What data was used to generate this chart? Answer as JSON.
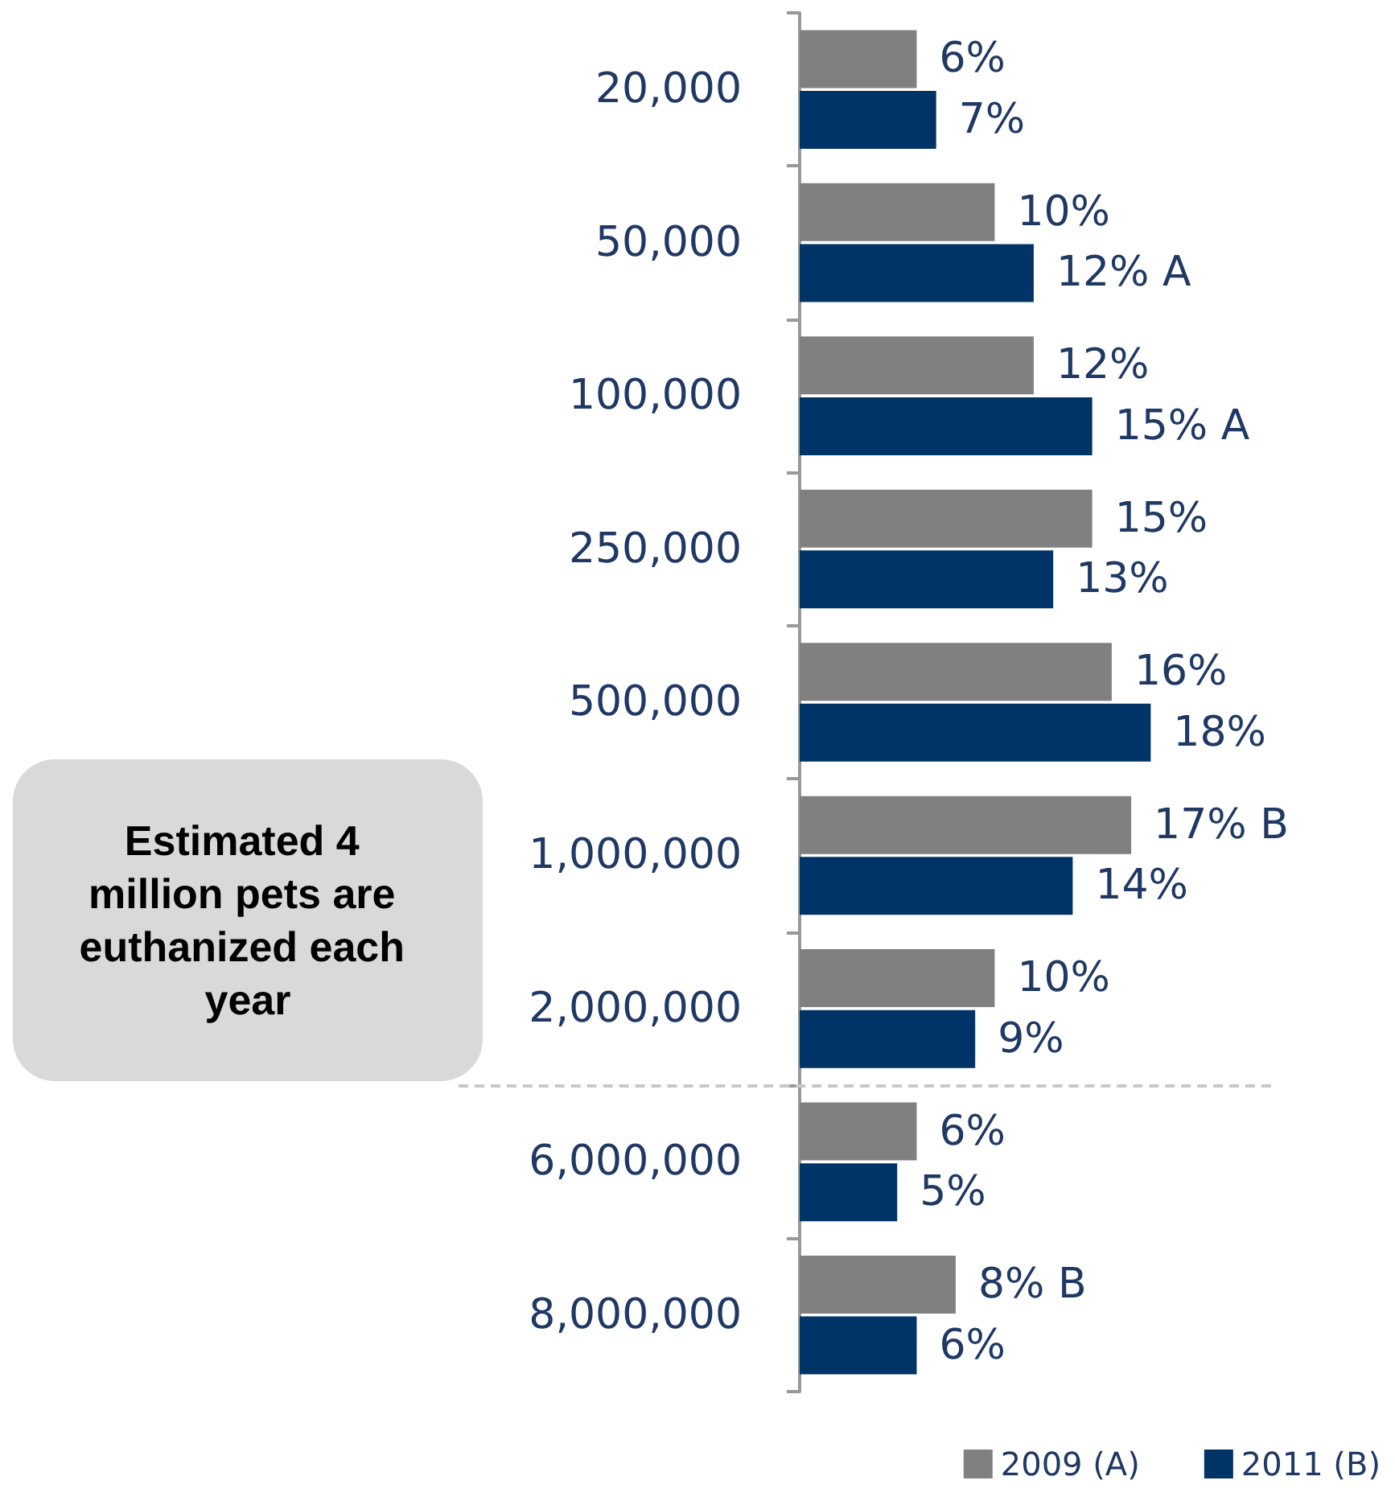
{
  "chart_data": {
    "type": "bar",
    "orientation": "horizontal",
    "tick_labels": "y",
    "categories": [
      "20,000",
      "50,000",
      "100,000",
      "250,000",
      "500,000",
      "1,000,000",
      "2,000,000",
      "6,000,000",
      "8,000,000"
    ],
    "series": [
      {
        "name": "2009 (A)",
        "color": "#808080",
        "values": [
          6,
          10,
          12,
          15,
          16,
          17,
          10,
          6,
          8
        ],
        "value_labels": [
          "6%",
          "10%",
          "12%",
          "15%",
          "16%",
          "17% B",
          "10%",
          "6%",
          "8% B"
        ]
      },
      {
        "name": "2011 (B)",
        "color": "#003366",
        "values": [
          7,
          12,
          15,
          13,
          18,
          14,
          9,
          5,
          6
        ],
        "value_labels": [
          "7%",
          "12% A",
          "15% A",
          "13%",
          "18%",
          "14%",
          "9%",
          "5%",
          "6%"
        ]
      }
    ],
    "annotations": [
      "Estimated 4 million pets are euthanized each year"
    ],
    "legend": "bottom right",
    "grid": false
  }
}
